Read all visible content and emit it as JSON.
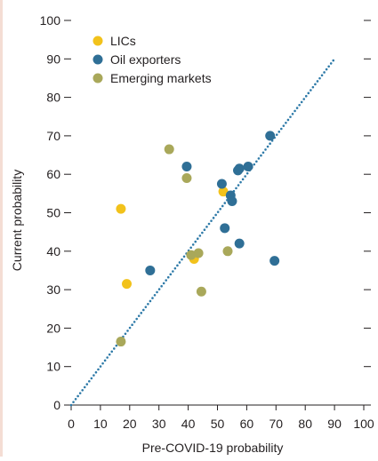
{
  "chart_data": {
    "type": "scatter",
    "title": "",
    "xlabel": "Pre-COVID-19 probability",
    "ylabel": "Current probability",
    "xlim": [
      0,
      100
    ],
    "ylim": [
      0,
      100
    ],
    "x_ticks": [
      0,
      10,
      20,
      30,
      40,
      50,
      60,
      70,
      80,
      90,
      100
    ],
    "y_ticks": [
      0,
      10,
      20,
      30,
      40,
      50,
      60,
      70,
      80,
      90,
      100
    ],
    "grid": false,
    "legend_position": "top-left",
    "reference_line": {
      "from": [
        0,
        0
      ],
      "to": [
        90,
        90
      ],
      "style": "dotted",
      "color": "#2e7aa8"
    },
    "series": [
      {
        "name": "LICs",
        "color": "#f2c21b",
        "points": [
          {
            "x": 17,
            "y": 51
          },
          {
            "x": 19,
            "y": 31.5
          },
          {
            "x": 42,
            "y": 38
          },
          {
            "x": 52,
            "y": 55.5
          }
        ]
      },
      {
        "name": "Oil exporters",
        "color": "#2f6f96",
        "points": [
          {
            "x": 27,
            "y": 35
          },
          {
            "x": 39.5,
            "y": 62
          },
          {
            "x": 51.5,
            "y": 57.5
          },
          {
            "x": 54.5,
            "y": 54.5
          },
          {
            "x": 55,
            "y": 53
          },
          {
            "x": 57,
            "y": 61
          },
          {
            "x": 57.5,
            "y": 61.5
          },
          {
            "x": 60.5,
            "y": 62
          },
          {
            "x": 68,
            "y": 70
          },
          {
            "x": 52.5,
            "y": 46
          },
          {
            "x": 57.5,
            "y": 42
          },
          {
            "x": 69.5,
            "y": 37.5
          }
        ]
      },
      {
        "name": "Emerging markets",
        "color": "#a9a85a",
        "points": [
          {
            "x": 33.5,
            "y": 66.5
          },
          {
            "x": 39.5,
            "y": 59
          },
          {
            "x": 41,
            "y": 39
          },
          {
            "x": 43.5,
            "y": 39.5
          },
          {
            "x": 44.5,
            "y": 29.5
          },
          {
            "x": 53.5,
            "y": 40
          },
          {
            "x": 17,
            "y": 16.5
          }
        ]
      }
    ]
  }
}
